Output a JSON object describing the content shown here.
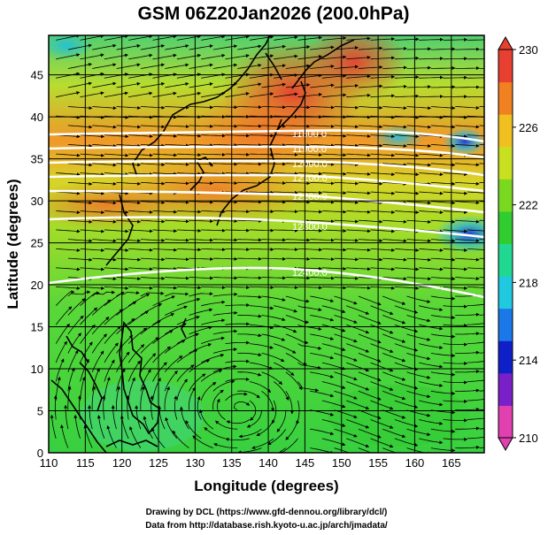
{
  "title": "GSM 06Z20Jan2026 (200.0hPa)",
  "x_axis": {
    "label": "Longitude (degrees)",
    "ticks": [
      "110",
      "115",
      "120",
      "125",
      "130",
      "135",
      "140",
      "145",
      "150",
      "155",
      "160",
      "165"
    ]
  },
  "y_axis": {
    "label": "Latitude  (degrees)",
    "ticks": [
      "0",
      "5",
      "10",
      "15",
      "20",
      "25",
      "30",
      "35",
      "40",
      "45"
    ]
  },
  "colorbar": {
    "ticks": [
      "210",
      "214",
      "218",
      "222",
      "226",
      "230"
    ],
    "min": 210,
    "max": 230,
    "colors": [
      "#e040b0",
      "#7a20c8",
      "#1020c8",
      "#1a78e8",
      "#20c8e0",
      "#20d890",
      "#30cc30",
      "#7ad820",
      "#c8e020",
      "#f0c020",
      "#f08020",
      "#e84030"
    ]
  },
  "contours": [
    {
      "label": "11800.0"
    },
    {
      "label": "11900.0"
    },
    {
      "label": "12000.0"
    },
    {
      "label": "12100.0"
    },
    {
      "label": "12200.0"
    },
    {
      "label": "12300.0"
    },
    {
      "label": "12400.0"
    }
  ],
  "credits": {
    "line1": "Drawing by DCL (https://www.gfd-dennou.org/library/dcl/)",
    "line2": "Data from http://database.rish.kyoto-u.ac.jp/arch/jmadata/"
  }
}
